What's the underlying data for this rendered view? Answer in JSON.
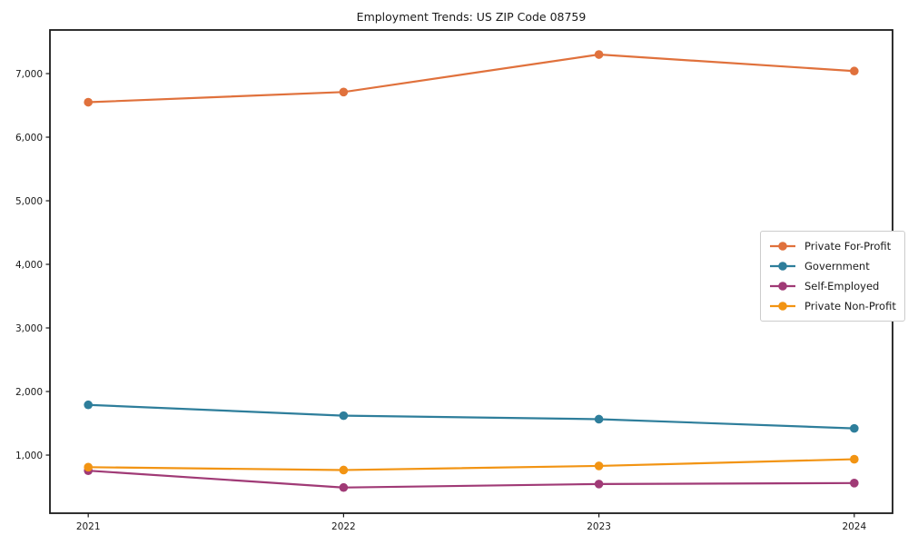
{
  "chart_data": {
    "type": "line",
    "title": "Employment Trends: US ZIP Code 08759",
    "categories": [
      "2021",
      "2022",
      "2023",
      "2024"
    ],
    "x": [
      2021,
      2022,
      2023,
      2024
    ],
    "series": [
      {
        "name": "Private For-Profit",
        "color": "#e0713c",
        "values": [
          6550,
          6710,
          7300,
          7040
        ]
      },
      {
        "name": "Government",
        "color": "#2e7e9b",
        "values": [
          1790,
          1620,
          1565,
          1420
        ]
      },
      {
        "name": "Self-Employed",
        "color": "#a03a76",
        "values": [
          755,
          490,
          545,
          560
        ]
      },
      {
        "name": "Private Non-Profit",
        "color": "#f29413",
        "values": [
          810,
          765,
          830,
          935
        ]
      }
    ],
    "xlabel": "",
    "ylabel": "",
    "yticks": [
      1000,
      2000,
      3000,
      4000,
      5000,
      6000,
      7000
    ],
    "ytick_labels": [
      "1,000",
      "2,000",
      "3,000",
      "4,000",
      "5,000",
      "6,000",
      "7,000"
    ],
    "xlim": [
      2020.85,
      2024.15
    ],
    "ylim": [
      86,
      7686
    ],
    "grid": false,
    "legend_position": "center-right",
    "marker": "circle",
    "axis_color": "#1a1a1a",
    "background_color": "#ffffff"
  }
}
